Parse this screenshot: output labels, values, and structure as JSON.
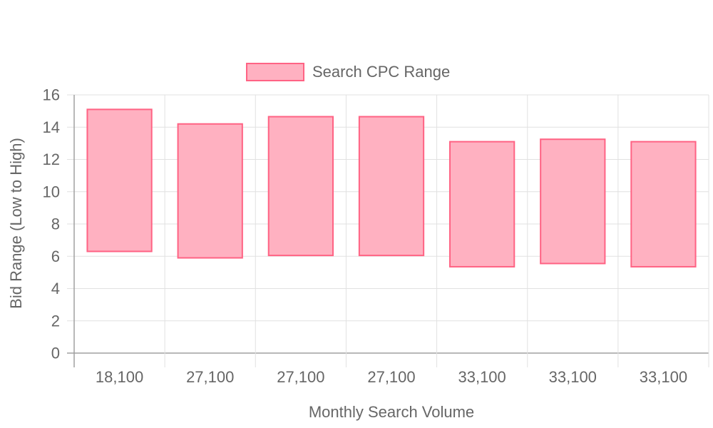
{
  "chart_data": {
    "type": "bar",
    "legend": {
      "label": "Search CPC Range",
      "position": "top"
    },
    "xlabel": "Monthly Search Volume",
    "ylabel": "Bid Range (Low to High)",
    "ylim": [
      0,
      16
    ],
    "yticks": [
      0,
      2,
      4,
      6,
      8,
      10,
      12,
      14,
      16
    ],
    "ytick_labels": [
      "0",
      "2",
      "4",
      "6",
      "8",
      "10",
      "12",
      "14",
      "16"
    ],
    "grid": true,
    "categories": [
      "18,100",
      "27,100",
      "27,100",
      "27,100",
      "33,100",
      "33,100",
      "33,100"
    ],
    "series": [
      {
        "name": "Search CPC Range",
        "low": [
          6.3,
          5.9,
          6.05,
          6.05,
          5.35,
          5.55,
          5.35
        ],
        "high": [
          15.1,
          14.2,
          14.65,
          14.65,
          13.1,
          13.25,
          13.1
        ]
      }
    ],
    "colors": {
      "fill": "#ffb1c1",
      "stroke": "#ff6384"
    }
  }
}
